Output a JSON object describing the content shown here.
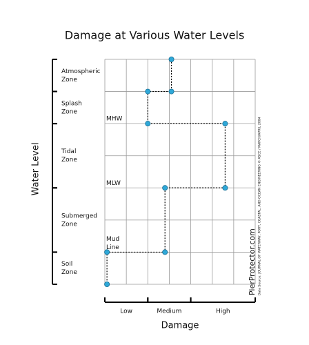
{
  "chart_data": {
    "type": "line",
    "title": "Damage at Various Water Levels",
    "x_label": "Damage",
    "y_label": "Water Level",
    "x": [
      3.1,
      3.1,
      2,
      2,
      5.6,
      5.6,
      2.8,
      2.8,
      0.1,
      0.1
    ],
    "values": [
      7,
      6,
      6,
      5,
      5,
      3,
      3,
      1,
      1,
      0
    ],
    "color": "#2fa8d8",
    "xlim": [
      0,
      7
    ],
    "ylim": [
      0,
      7
    ],
    "xticks": [
      0,
      1,
      2,
      3,
      4,
      5,
      6,
      7
    ],
    "yticks": [
      0,
      1,
      2,
      3,
      4,
      5,
      6,
      7
    ],
    "grid": true,
    "x_ranges": [
      {
        "label": "Low",
        "range": [
          0,
          2
        ]
      },
      {
        "label": "Medium",
        "range": [
          2,
          4
        ]
      },
      {
        "label": "High",
        "range": [
          4,
          7
        ]
      }
    ],
    "zones": [
      {
        "label": [
          "Atmospheric",
          "Zone"
        ],
        "range": [
          6,
          7
        ]
      },
      {
        "label": [
          "Splash",
          "Zone"
        ],
        "range": [
          5,
          6
        ]
      },
      {
        "label": [
          "Tidal",
          "Zone"
        ],
        "range": [
          3,
          5
        ]
      },
      {
        "label": [
          "Submerged",
          "Zone"
        ],
        "range": [
          1,
          3
        ]
      },
      {
        "label": [
          "Soil",
          "Zone"
        ],
        "range": [
          0,
          1
        ]
      }
    ],
    "levels": [
      {
        "label": [
          "MHW"
        ],
        "value": 5
      },
      {
        "label": [
          "MLW"
        ],
        "value": 3
      },
      {
        "label": [
          "Mud",
          "Line"
        ],
        "value": 1
      }
    ],
    "brand": "PierProtector.com",
    "source": "Data Source: JOURNAL OF WATERWAY, PORT, COASTAL, AND OCEAN ENGINEERING © ASCE / MARCH/APRIL 2004"
  }
}
